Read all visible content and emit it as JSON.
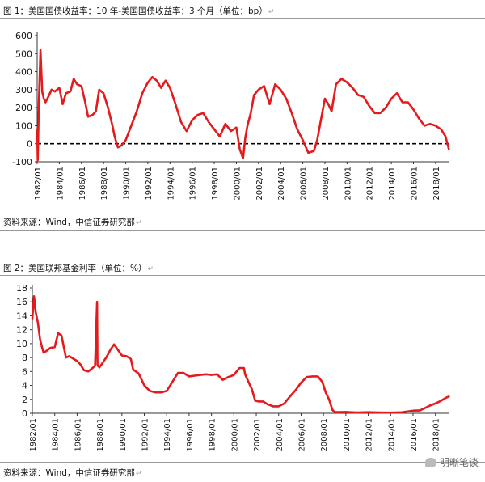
{
  "figure1": {
    "caption": "图 1：美国国债收益率：10 年-美国国债收益率：3 个月（单位：bp）",
    "source": "资料来源：Wind，中信证券研究部"
  },
  "figure2": {
    "caption": "图 2：美国联邦基金利率（单位：%）",
    "source": "资料来源：Wind，中信证券研究部"
  },
  "paragraph_mark": "↵",
  "watermark": "明晰笔谈",
  "colors": {
    "series": "#e41a1c",
    "zero_line": "#000000",
    "rule": "#999999"
  },
  "chart_data": [
    {
      "type": "line",
      "title": "图 1：美国国债收益率：10 年-美国国债收益率：3 个月（单位：bp）",
      "ylim": [
        -100,
        600
      ],
      "yticks": [
        -100,
        0,
        100,
        200,
        300,
        400,
        500,
        600
      ],
      "xlim": [
        1982.0,
        2019.25
      ],
      "xticks": [
        "1982/01",
        "1984/01",
        "1986/01",
        "1988/01",
        "1990/01",
        "1992/01",
        "1994/01",
        "1996/01",
        "1998/01",
        "2000/01",
        "2002/01",
        "2004/01",
        "2006/01",
        "2008/01",
        "2010/01",
        "2012/01",
        "2014/01",
        "2016/01",
        "2018/01"
      ],
      "reference_line": {
        "y": 0,
        "style": "dashed"
      },
      "grid": false,
      "series": [
        {
          "x": [
            1982.0,
            1982.05,
            1982.15,
            1982.3,
            1982.45,
            1982.6,
            1982.75,
            1983.0,
            1983.3,
            1983.6,
            1984.0,
            1984.3,
            1984.6,
            1985.0,
            1985.3,
            1985.6,
            1986.0,
            1986.3,
            1986.6,
            1987.0,
            1987.3,
            1987.6,
            1988.0,
            1988.4,
            1988.8,
            1989.0,
            1989.3,
            1989.6,
            1990.0,
            1990.5,
            1991.0,
            1991.5,
            1992.0,
            1992.4,
            1992.8,
            1993.2,
            1993.6,
            1994.0,
            1994.5,
            1995.0,
            1995.5,
            1996.0,
            1996.5,
            1997.0,
            1997.5,
            1998.0,
            1998.5,
            1999.0,
            1999.5,
            2000.0,
            2000.3,
            2000.6,
            2000.8,
            2001.0,
            2001.3,
            2001.6,
            2002.0,
            2002.5,
            2003.0,
            2003.5,
            2004.0,
            2004.5,
            2005.0,
            2005.5,
            2006.0,
            2006.5,
            2007.0,
            2007.3,
            2007.6,
            2008.0,
            2008.3,
            2008.6,
            2009.0,
            2009.5,
            2010.0,
            2010.5,
            2011.0,
            2011.5,
            2012.0,
            2012.5,
            2013.0,
            2013.5,
            2014.0,
            2014.5,
            2015.0,
            2015.5,
            2016.0,
            2016.5,
            2017.0,
            2017.5,
            2018.0,
            2018.5,
            2018.9,
            2019.2
          ],
          "y": [
            80,
            -90,
            230,
            520,
            290,
            250,
            230,
            260,
            300,
            290,
            310,
            220,
            280,
            290,
            360,
            330,
            320,
            240,
            150,
            160,
            180,
            300,
            280,
            200,
            100,
            40,
            -20,
            -10,
            20,
            100,
            180,
            280,
            340,
            370,
            350,
            310,
            350,
            310,
            220,
            120,
            70,
            130,
            160,
            170,
            120,
            80,
            40,
            110,
            70,
            90,
            -30,
            -80,
            30,
            100,
            170,
            270,
            300,
            320,
            220,
            330,
            300,
            250,
            170,
            80,
            20,
            -50,
            -40,
            20,
            120,
            250,
            220,
            180,
            330,
            360,
            340,
            310,
            270,
            260,
            210,
            170,
            170,
            200,
            250,
            280,
            230,
            230,
            190,
            140,
            100,
            110,
            100,
            80,
            40,
            -30
          ]
        }
      ]
    },
    {
      "type": "line",
      "title": "图 2：美国联邦基金利率（单位：%）",
      "ylim": [
        0,
        18
      ],
      "yticks": [
        0,
        2,
        4,
        6,
        8,
        10,
        12,
        14,
        16,
        18
      ],
      "xlim": [
        1982.0,
        2019.25
      ],
      "xticks": [
        "1982/01",
        "1984/01",
        "1986/01",
        "1988/01",
        "1990/01",
        "1992/01",
        "1994/01",
        "1996/01",
        "1998/01",
        "2000/01",
        "2002/01",
        "2004/01",
        "2006/01",
        "2008/01",
        "2010/01",
        "2012/01",
        "2014/01",
        "2016/01",
        "2018/01"
      ],
      "grid": false,
      "series": [
        {
          "x": [
            1982.0,
            1982.15,
            1982.3,
            1982.5,
            1982.7,
            1983.0,
            1983.3,
            1983.6,
            1984.0,
            1984.3,
            1984.6,
            1985.0,
            1985.3,
            1985.6,
            1986.0,
            1986.3,
            1986.6,
            1987.0,
            1987.3,
            1987.6,
            1987.78,
            1987.82,
            1987.86,
            1988.0,
            1988.3,
            1988.6,
            1989.0,
            1989.3,
            1989.6,
            1990.0,
            1990.4,
            1990.8,
            1991.0,
            1991.5,
            1992.0,
            1992.5,
            1993.0,
            1993.5,
            1994.0,
            1994.5,
            1995.0,
            1995.5,
            1996.0,
            1996.5,
            1997.0,
            1997.5,
            1998.0,
            1998.5,
            1999.0,
            1999.5,
            2000.0,
            2000.5,
            2000.9,
            2001.0,
            2001.3,
            2001.6,
            2001.9,
            2002.2,
            2002.6,
            2003.0,
            2003.5,
            2004.0,
            2004.5,
            2005.0,
            2005.5,
            2006.0,
            2006.5,
            2007.0,
            2007.5,
            2007.9,
            2008.2,
            2008.5,
            2008.8,
            2009.0,
            2009.5,
            2010.0,
            2011.0,
            2012.0,
            2013.0,
            2014.0,
            2015.0,
            2015.9,
            2016.2,
            2016.6,
            2017.0,
            2017.5,
            2018.0,
            2018.5,
            2018.9,
            2019.2
          ],
          "y": [
            13.5,
            16.8,
            14.5,
            13,
            10.5,
            8.7,
            9,
            9.4,
            9.5,
            11.5,
            11.2,
            8,
            8.2,
            7.9,
            7.5,
            7,
            6.2,
            6,
            6.4,
            6.8,
            16,
            7,
            6.8,
            6.6,
            7.3,
            8,
            9.2,
            9.9,
            9.2,
            8.3,
            8.2,
            7.8,
            6.3,
            5.7,
            4,
            3.2,
            3,
            3,
            3.2,
            4.5,
            5.8,
            5.8,
            5.3,
            5.4,
            5.5,
            5.6,
            5.5,
            5.6,
            4.8,
            5.2,
            5.5,
            6.5,
            6.5,
            5.6,
            4.5,
            3.5,
            1.8,
            1.7,
            1.7,
            1.3,
            1,
            1,
            1.4,
            2.4,
            3.3,
            4.4,
            5.2,
            5.3,
            5.3,
            4.5,
            3,
            2,
            0.5,
            0.16,
            0.16,
            0.18,
            0.1,
            0.15,
            0.12,
            0.09,
            0.14,
            0.35,
            0.4,
            0.4,
            0.7,
            1.1,
            1.4,
            1.8,
            2.2,
            2.4
          ]
        }
      ]
    }
  ]
}
